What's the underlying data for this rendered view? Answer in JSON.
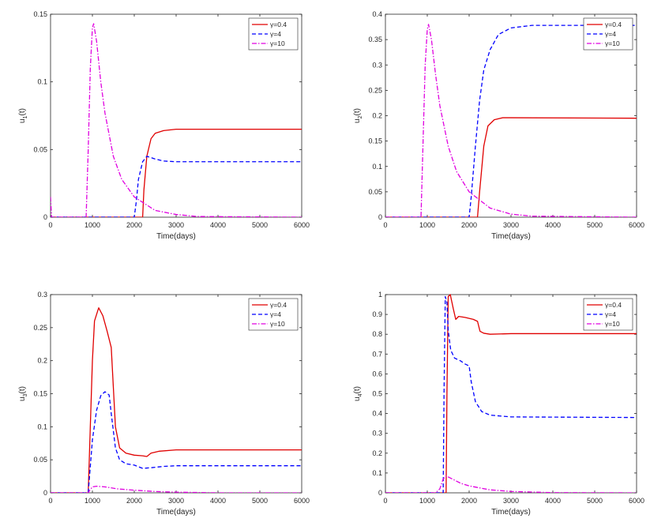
{
  "chart_data": [
    {
      "type": "line",
      "id": "u1",
      "xlabel": "Time(days)",
      "ylabel_base": "u",
      "ylabel_sub": "1",
      "ylabel_suffix": "(t)",
      "xlim": [
        0,
        6000
      ],
      "ylim": [
        0,
        0.15
      ],
      "xticks": [
        0,
        1000,
        2000,
        3000,
        4000,
        5000,
        6000
      ],
      "xtick_labels": [
        "0",
        "1000",
        "2000",
        "3000",
        "4000",
        "5000",
        "6000"
      ],
      "yticks": [
        0,
        0.05,
        0.1,
        0.15
      ],
      "ytick_labels": [
        "0",
        "0.05",
        "0.1",
        "0.15"
      ],
      "legend_position": "top-right",
      "grid": false,
      "series": [
        {
          "name": "γ=0.4",
          "color": "#e00000",
          "dash": "solid",
          "points": [
            [
              0,
              0
            ],
            [
              2200,
              0
            ],
            [
              2230,
              0.02
            ],
            [
              2300,
              0.045
            ],
            [
              2400,
              0.058
            ],
            [
              2500,
              0.062
            ],
            [
              2700,
              0.064
            ],
            [
              3000,
              0.065
            ],
            [
              6000,
              0.065
            ]
          ]
        },
        {
          "name": "γ=4",
          "color": "#0000ff",
          "dash": "dashed",
          "points": [
            [
              0,
              0
            ],
            [
              2000,
              0
            ],
            [
              2050,
              0.012
            ],
            [
              2100,
              0.028
            ],
            [
              2200,
              0.041
            ],
            [
              2300,
              0.045
            ],
            [
              2500,
              0.043
            ],
            [
              2700,
              0.0415
            ],
            [
              3000,
              0.041
            ],
            [
              6000,
              0.041
            ]
          ]
        },
        {
          "name": "γ=10",
          "color": "#e000e0",
          "dash": "dashdot",
          "points": [
            [
              0,
              0.015
            ],
            [
              25,
              0
            ],
            [
              850,
              0
            ],
            [
              900,
              0.05
            ],
            [
              950,
              0.11
            ],
            [
              1000,
              0.14
            ],
            [
              1030,
              0.143
            ],
            [
              1100,
              0.13
            ],
            [
              1200,
              0.1
            ],
            [
              1300,
              0.077
            ],
            [
              1500,
              0.045
            ],
            [
              1700,
              0.028
            ],
            [
              2000,
              0.015
            ],
            [
              2500,
              0.005
            ],
            [
              3000,
              0.002
            ],
            [
              3500,
              0.0005
            ],
            [
              6000,
              0
            ]
          ]
        }
      ]
    },
    {
      "type": "line",
      "id": "u2",
      "xlabel": "Time(days)",
      "ylabel_base": "u",
      "ylabel_sub": "2",
      "ylabel_suffix": "(t)",
      "xlim": [
        0,
        6000
      ],
      "ylim": [
        0,
        0.4
      ],
      "xticks": [
        0,
        1000,
        2000,
        3000,
        4000,
        5000,
        6000
      ],
      "xtick_labels": [
        "0",
        "1000",
        "2000",
        "3000",
        "4000",
        "5000",
        "6000"
      ],
      "yticks": [
        0,
        0.05,
        0.1,
        0.15,
        0.2,
        0.25,
        0.3,
        0.35,
        0.4
      ],
      "ytick_labels": [
        "0",
        "0.05",
        "0.1",
        "0.15",
        "0.2",
        "0.25",
        "0.3",
        "0.35",
        "0.4"
      ],
      "legend_position": "top-right",
      "grid": false,
      "series": [
        {
          "name": "γ=0.4",
          "color": "#e00000",
          "dash": "solid",
          "points": [
            [
              0,
              0
            ],
            [
              2200,
              0
            ],
            [
              2250,
              0.05
            ],
            [
              2350,
              0.14
            ],
            [
              2450,
              0.18
            ],
            [
              2600,
              0.192
            ],
            [
              2800,
              0.196
            ],
            [
              3000,
              0.196
            ],
            [
              6000,
              0.195
            ]
          ]
        },
        {
          "name": "γ=4",
          "color": "#0000ff",
          "dash": "dashed",
          "points": [
            [
              0,
              0
            ],
            [
              2000,
              0
            ],
            [
              2050,
              0.04
            ],
            [
              2150,
              0.14
            ],
            [
              2250,
              0.23
            ],
            [
              2350,
              0.29
            ],
            [
              2500,
              0.33
            ],
            [
              2700,
              0.36
            ],
            [
              3000,
              0.373
            ],
            [
              3500,
              0.378
            ],
            [
              6000,
              0.378
            ]
          ]
        },
        {
          "name": "γ=10",
          "color": "#e000e0",
          "dash": "dashdot",
          "points": [
            [
              0,
              0
            ],
            [
              850,
              0
            ],
            [
              900,
              0.15
            ],
            [
              950,
              0.3
            ],
            [
              1000,
              0.37
            ],
            [
              1030,
              0.38
            ],
            [
              1100,
              0.35
            ],
            [
              1200,
              0.28
            ],
            [
              1300,
              0.22
            ],
            [
              1500,
              0.14
            ],
            [
              1700,
              0.09
            ],
            [
              2000,
              0.05
            ],
            [
              2500,
              0.018
            ],
            [
              3000,
              0.006
            ],
            [
              3500,
              0.002
            ],
            [
              6000,
              0
            ]
          ]
        }
      ]
    },
    {
      "type": "line",
      "id": "u3",
      "xlabel": "Time(days)",
      "ylabel_base": "u",
      "ylabel_sub": "3",
      "ylabel_suffix": "(t)",
      "xlim": [
        0,
        6000
      ],
      "ylim": [
        0,
        0.3
      ],
      "xticks": [
        0,
        1000,
        2000,
        3000,
        4000,
        5000,
        6000
      ],
      "xtick_labels": [
        "0",
        "1000",
        "2000",
        "3000",
        "4000",
        "5000",
        "6000"
      ],
      "yticks": [
        0,
        0.05,
        0.1,
        0.15,
        0.2,
        0.25,
        0.3
      ],
      "ytick_labels": [
        "0",
        "0.05",
        "0.1",
        "0.15",
        "0.2",
        "0.25",
        "0.3"
      ],
      "legend_position": "top-right",
      "grid": false,
      "series": [
        {
          "name": "γ=0.4",
          "color": "#e00000",
          "dash": "solid",
          "points": [
            [
              0,
              0
            ],
            [
              900,
              0
            ],
            [
              950,
              0.1
            ],
            [
              1000,
              0.2
            ],
            [
              1050,
              0.26
            ],
            [
              1150,
              0.28
            ],
            [
              1250,
              0.268
            ],
            [
              1350,
              0.245
            ],
            [
              1450,
              0.22
            ],
            [
              1500,
              0.16
            ],
            [
              1550,
              0.1
            ],
            [
              1650,
              0.068
            ],
            [
              1800,
              0.06
            ],
            [
              2000,
              0.057
            ],
            [
              2200,
              0.056
            ],
            [
              2300,
              0.055
            ],
            [
              2400,
              0.06
            ],
            [
              2600,
              0.063
            ],
            [
              3000,
              0.065
            ],
            [
              6000,
              0.065
            ]
          ]
        },
        {
          "name": "γ=4",
          "color": "#0000ff",
          "dash": "dashed",
          "points": [
            [
              0,
              0
            ],
            [
              900,
              0
            ],
            [
              950,
              0.04
            ],
            [
              1000,
              0.08
            ],
            [
              1100,
              0.125
            ],
            [
              1200,
              0.147
            ],
            [
              1300,
              0.153
            ],
            [
              1400,
              0.148
            ],
            [
              1450,
              0.12
            ],
            [
              1550,
              0.068
            ],
            [
              1650,
              0.05
            ],
            [
              1800,
              0.044
            ],
            [
              2000,
              0.042
            ],
            [
              2200,
              0.037
            ],
            [
              2400,
              0.038
            ],
            [
              2700,
              0.04
            ],
            [
              3000,
              0.041
            ],
            [
              6000,
              0.041
            ]
          ]
        },
        {
          "name": "γ=10",
          "color": "#e000e0",
          "dash": "dashdot",
          "points": [
            [
              0,
              0
            ],
            [
              900,
              0
            ],
            [
              950,
              0.005
            ],
            [
              1000,
              0.009
            ],
            [
              1100,
              0.01
            ],
            [
              1300,
              0.009
            ],
            [
              1600,
              0.006
            ],
            [
              2000,
              0.004
            ],
            [
              2500,
              0.002
            ],
            [
              3000,
              0.001
            ],
            [
              4000,
              0
            ],
            [
              6000,
              0
            ]
          ]
        }
      ]
    },
    {
      "type": "line",
      "id": "u4",
      "xlabel": "Time(days)",
      "ylabel_base": "u",
      "ylabel_sub": "4",
      "ylabel_suffix": "(t)",
      "xlim": [
        0,
        6000
      ],
      "ylim": [
        0,
        1
      ],
      "xticks": [
        0,
        1000,
        2000,
        3000,
        4000,
        5000,
        6000
      ],
      "xtick_labels": [
        "0",
        "1000",
        "2000",
        "3000",
        "4000",
        "5000",
        "6000"
      ],
      "yticks": [
        0,
        0.1,
        0.2,
        0.3,
        0.4,
        0.5,
        0.6,
        0.7,
        0.8,
        0.9,
        1
      ],
      "ytick_labels": [
        "0",
        "0.1",
        "0.2",
        "0.3",
        "0.4",
        "0.5",
        "0.6",
        "0.7",
        "0.8",
        "0.9",
        "1"
      ],
      "legend_position": "top-right",
      "grid": false,
      "series": [
        {
          "name": "γ=0.4",
          "color": "#e00000",
          "dash": "solid",
          "points": [
            [
              0,
              0
            ],
            [
              1450,
              0
            ],
            [
              1470,
              0.5
            ],
            [
              1500,
              0.99
            ],
            [
              1550,
              1
            ],
            [
              1620,
              0.93
            ],
            [
              1680,
              0.875
            ],
            [
              1750,
              0.89
            ],
            [
              1900,
              0.885
            ],
            [
              2100,
              0.875
            ],
            [
              2200,
              0.865
            ],
            [
              2260,
              0.815
            ],
            [
              2350,
              0.805
            ],
            [
              2500,
              0.8
            ],
            [
              3000,
              0.803
            ],
            [
              6000,
              0.803
            ]
          ]
        },
        {
          "name": "γ=4",
          "color": "#0000ff",
          "dash": "dashed",
          "points": [
            [
              0,
              0
            ],
            [
              1380,
              0
            ],
            [
              1400,
              0.5
            ],
            [
              1430,
              0.99
            ],
            [
              1470,
              0.96
            ],
            [
              1500,
              0.82
            ],
            [
              1560,
              0.72
            ],
            [
              1650,
              0.68
            ],
            [
              1800,
              0.665
            ],
            [
              1900,
              0.65
            ],
            [
              2000,
              0.64
            ],
            [
              2050,
              0.56
            ],
            [
              2150,
              0.46
            ],
            [
              2300,
              0.41
            ],
            [
              2500,
              0.392
            ],
            [
              3000,
              0.383
            ],
            [
              6000,
              0.38
            ]
          ]
        },
        {
          "name": "γ=10",
          "color": "#e000e0",
          "dash": "dashdot",
          "points": [
            [
              0,
              0
            ],
            [
              1200,
              0
            ],
            [
              1300,
              0.02
            ],
            [
              1380,
              0.07
            ],
            [
              1450,
              0.085
            ],
            [
              1550,
              0.075
            ],
            [
              1800,
              0.048
            ],
            [
              2000,
              0.035
            ],
            [
              2500,
              0.015
            ],
            [
              3000,
              0.007
            ],
            [
              4000,
              0.001
            ],
            [
              6000,
              0
            ]
          ]
        }
      ]
    }
  ]
}
